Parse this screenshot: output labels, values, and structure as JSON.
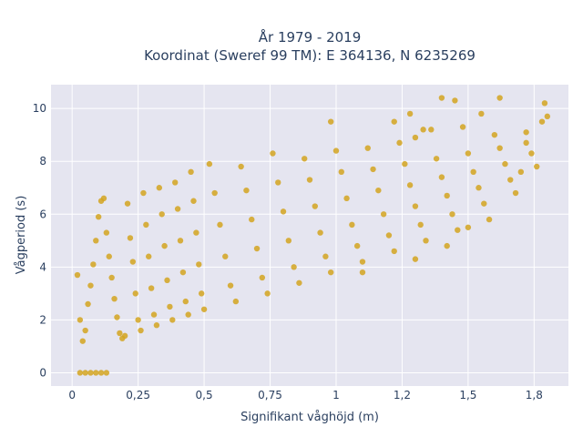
{
  "chart_data": {
    "type": "scatter",
    "title_line1": "År 1979 - 2019",
    "title_line2": "Koordinat (Sweref 99 TM): E 364136, N 6235269",
    "xlabel": "Signifikant våghöjd (m)",
    "ylabel": "Vågperiod (s)",
    "xlim": [
      -0.08,
      1.88
    ],
    "ylim": [
      -0.5,
      10.9
    ],
    "x_ticks": [
      {
        "value": 0,
        "label": "0"
      },
      {
        "value": 0.25,
        "label": "0,25"
      },
      {
        "value": 0.5,
        "label": "0,5"
      },
      {
        "value": 0.75,
        "label": "0,75"
      },
      {
        "value": 1,
        "label": "1"
      },
      {
        "value": 1.25,
        "label": "1,2"
      },
      {
        "value": 1.5,
        "label": "1,5"
      },
      {
        "value": 1.75,
        "label": "1,8"
      }
    ],
    "y_ticks": [
      {
        "value": 0,
        "label": "0"
      },
      {
        "value": 2,
        "label": "2"
      },
      {
        "value": 4,
        "label": "4"
      },
      {
        "value": 6,
        "label": "6"
      },
      {
        "value": 8,
        "label": "8"
      },
      {
        "value": 10,
        "label": "10"
      }
    ],
    "grid": true,
    "colors": {
      "marker": "#d4a420",
      "plot_bg": "#e5e5f0",
      "grid": "#ffffff",
      "text": "#2a3f5f"
    },
    "points": [
      [
        0.03,
        0.0
      ],
      [
        0.05,
        0.0
      ],
      [
        0.07,
        0.0
      ],
      [
        0.09,
        0.0
      ],
      [
        0.11,
        0.0
      ],
      [
        0.13,
        0.0
      ],
      [
        0.02,
        3.7
      ],
      [
        0.03,
        2.0
      ],
      [
        0.04,
        1.2
      ],
      [
        0.05,
        1.6
      ],
      [
        0.06,
        2.6
      ],
      [
        0.07,
        3.3
      ],
      [
        0.08,
        4.1
      ],
      [
        0.09,
        5.0
      ],
      [
        0.1,
        5.9
      ],
      [
        0.11,
        6.5
      ],
      [
        0.12,
        6.6
      ],
      [
        0.13,
        5.3
      ],
      [
        0.14,
        4.4
      ],
      [
        0.15,
        3.6
      ],
      [
        0.16,
        2.8
      ],
      [
        0.17,
        2.1
      ],
      [
        0.18,
        1.5
      ],
      [
        0.19,
        1.3
      ],
      [
        0.2,
        1.4
      ],
      [
        0.21,
        6.4
      ],
      [
        0.22,
        5.1
      ],
      [
        0.23,
        4.2
      ],
      [
        0.24,
        3.0
      ],
      [
        0.25,
        2.0
      ],
      [
        0.26,
        1.6
      ],
      [
        0.27,
        6.8
      ],
      [
        0.28,
        5.6
      ],
      [
        0.29,
        4.4
      ],
      [
        0.3,
        3.2
      ],
      [
        0.31,
        2.2
      ],
      [
        0.32,
        1.8
      ],
      [
        0.33,
        7.0
      ],
      [
        0.34,
        6.0
      ],
      [
        0.35,
        4.8
      ],
      [
        0.36,
        3.5
      ],
      [
        0.37,
        2.5
      ],
      [
        0.38,
        2.0
      ],
      [
        0.39,
        7.2
      ],
      [
        0.4,
        6.2
      ],
      [
        0.41,
        5.0
      ],
      [
        0.42,
        3.8
      ],
      [
        0.43,
        2.7
      ],
      [
        0.44,
        2.2
      ],
      [
        0.45,
        7.6
      ],
      [
        0.46,
        6.5
      ],
      [
        0.47,
        5.3
      ],
      [
        0.48,
        4.1
      ],
      [
        0.49,
        3.0
      ],
      [
        0.5,
        2.4
      ],
      [
        0.52,
        7.9
      ],
      [
        0.54,
        6.8
      ],
      [
        0.56,
        5.6
      ],
      [
        0.58,
        4.4
      ],
      [
        0.6,
        3.3
      ],
      [
        0.62,
        2.7
      ],
      [
        0.64,
        7.8
      ],
      [
        0.66,
        6.9
      ],
      [
        0.68,
        5.8
      ],
      [
        0.7,
        4.7
      ],
      [
        0.72,
        3.6
      ],
      [
        0.74,
        3.0
      ],
      [
        0.76,
        8.3
      ],
      [
        0.78,
        7.2
      ],
      [
        0.8,
        6.1
      ],
      [
        0.82,
        5.0
      ],
      [
        0.84,
        4.0
      ],
      [
        0.86,
        3.4
      ],
      [
        0.88,
        8.1
      ],
      [
        0.9,
        7.3
      ],
      [
        0.92,
        6.3
      ],
      [
        0.94,
        5.3
      ],
      [
        0.96,
        4.4
      ],
      [
        0.98,
        3.8
      ],
      [
        1.0,
        8.4
      ],
      [
        1.02,
        7.6
      ],
      [
        1.04,
        6.6
      ],
      [
        1.06,
        5.6
      ],
      [
        1.08,
        4.8
      ],
      [
        1.1,
        4.2
      ],
      [
        1.12,
        8.5
      ],
      [
        1.14,
        7.7
      ],
      [
        1.16,
        6.9
      ],
      [
        1.18,
        6.0
      ],
      [
        1.2,
        5.2
      ],
      [
        1.22,
        4.6
      ],
      [
        1.24,
        8.7
      ],
      [
        1.26,
        7.9
      ],
      [
        1.28,
        7.1
      ],
      [
        1.3,
        6.3
      ],
      [
        1.32,
        5.6
      ],
      [
        1.34,
        5.0
      ],
      [
        1.36,
        9.2
      ],
      [
        1.38,
        8.1
      ],
      [
        1.4,
        7.4
      ],
      [
        1.42,
        6.7
      ],
      [
        1.44,
        6.0
      ],
      [
        1.46,
        5.4
      ],
      [
        1.48,
        9.3
      ],
      [
        1.5,
        8.3
      ],
      [
        1.52,
        7.6
      ],
      [
        1.54,
        7.0
      ],
      [
        1.56,
        6.4
      ],
      [
        1.58,
        5.8
      ],
      [
        1.6,
        9.0
      ],
      [
        1.62,
        8.5
      ],
      [
        1.64,
        7.9
      ],
      [
        1.66,
        7.3
      ],
      [
        1.68,
        6.8
      ],
      [
        1.7,
        7.6
      ],
      [
        1.72,
        8.7
      ],
      [
        1.74,
        8.3
      ],
      [
        1.76,
        7.8
      ],
      [
        1.78,
        9.5
      ],
      [
        1.8,
        9.7
      ],
      [
        1.22,
        9.5
      ],
      [
        1.28,
        9.8
      ],
      [
        1.33,
        9.2
      ],
      [
        1.4,
        10.4
      ],
      [
        1.45,
        10.3
      ],
      [
        1.62,
        10.4
      ],
      [
        1.72,
        9.1
      ],
      [
        1.79,
        10.2
      ],
      [
        1.3,
        8.9
      ],
      [
        1.55,
        9.8
      ],
      [
        0.98,
        9.5
      ],
      [
        1.5,
        5.5
      ],
      [
        1.42,
        4.8
      ],
      [
        1.3,
        4.3
      ],
      [
        1.1,
        3.8
      ]
    ]
  }
}
